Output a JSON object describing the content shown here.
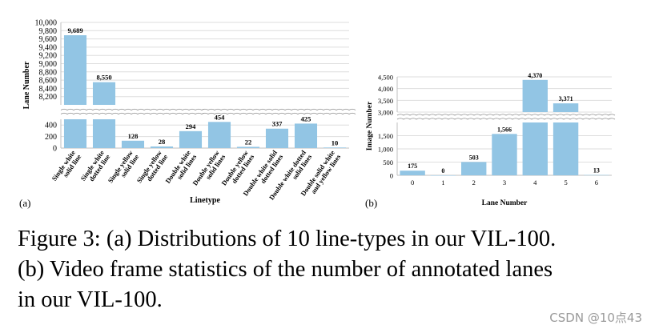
{
  "chart_data": [
    {
      "type": "bar",
      "panel_label": "(a)",
      "xlabel": "Linetype",
      "ylabel": "Lane Number",
      "categories": [
        "Single white solid line",
        "Single white dotted line",
        "Single yellow solid line",
        "Single yellow dotted line",
        "Double white solid lines",
        "Double yellow solid lines",
        "Double yellow dotted lines",
        "Double white solid dotted lines",
        "Double white dotted solid lines",
        "Double solid white and yellow lines"
      ],
      "values": [
        9689,
        8550,
        128,
        28,
        294,
        454,
        22,
        337,
        425,
        10
      ],
      "data_labels": [
        "9,689",
        "8,550",
        "128",
        "28",
        "294",
        "454",
        "22",
        "337",
        "425",
        "10"
      ],
      "broken_axis": {
        "lower_range": [
          0,
          500
        ],
        "upper_range": [
          8000,
          10000
        ]
      },
      "yticks_lower": [
        "0",
        "200",
        "400"
      ],
      "yticks_upper": [
        "8,200",
        "8,400",
        "8,600",
        "8,800",
        "9,000",
        "9,200",
        "9,400",
        "9,600",
        "9,800",
        "10,000"
      ],
      "bar_color": "#92c5e4",
      "grid": true
    },
    {
      "type": "bar",
      "panel_label": "(b)",
      "xlabel": "Lane Number",
      "ylabel": "Image Number",
      "categories": [
        "0",
        "1",
        "2",
        "3",
        "4",
        "5",
        "6"
      ],
      "values": [
        175,
        0,
        503,
        1566,
        4370,
        3371,
        13
      ],
      "data_labels": [
        "175",
        "0",
        "503",
        "1,566",
        "4,370",
        "3,371",
        "13"
      ],
      "broken_axis": {
        "lower_range": [
          0,
          2000
        ],
        "upper_range": [
          3000,
          4500
        ]
      },
      "yticks_lower": [
        "0",
        "500",
        "1,000",
        "1,500"
      ],
      "yticks_upper": [
        "3,000",
        "3,500",
        "4,000",
        "4,500"
      ],
      "bar_color": "#92c5e4",
      "grid": true
    }
  ],
  "caption": "Figure 3: (a) Distributions of 10 line-types in our VIL-100.\n(b) Video frame statistics of the number of annotated lanes\nin our VIL-100.",
  "watermark": "CSDN @10点43"
}
